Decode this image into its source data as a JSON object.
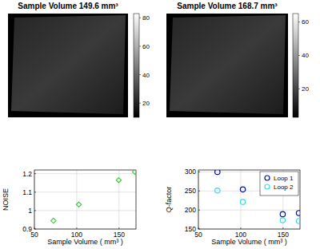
{
  "chart_data": [
    {
      "type": "image",
      "title": "Sample Volume 149.6 mm³",
      "color_range": [
        10,
        83
      ],
      "color_ticks": [
        20,
        40,
        60,
        80
      ]
    },
    {
      "type": "image",
      "title": "Sample Volume 168.7 mm³",
      "color_range": [
        3,
        65
      ],
      "color_ticks": [
        20,
        40,
        60
      ]
    },
    {
      "type": "scatter",
      "x_label": "Sample Volume ( mm³ )",
      "y_label": "NOISE",
      "x": [
        72.5,
        102.5,
        149.6,
        168.7
      ],
      "values": [
        0.945,
        1.033,
        1.165,
        1.21
      ],
      "color": "#33cc33",
      "marker": "diamond",
      "xlim": [
        50,
        170
      ],
      "xticks": [
        50,
        100,
        150
      ],
      "ylim": [
        0.9,
        1.22
      ],
      "yticks": [
        0.9,
        1,
        1.1,
        1.2
      ],
      "grid": true
    },
    {
      "type": "scatter",
      "x_label": "Sample Volume ( mm³ )",
      "y_label": "Q-factor",
      "x": [
        72.5,
        102.5,
        149.6,
        168.7
      ],
      "series": [
        {
          "name": "Loop 1",
          "color": "#0c0c9c",
          "marker": "circle",
          "values": [
            300,
            254,
            189,
            192
          ]
        },
        {
          "name": "Loop 2",
          "color": "#40d8e8",
          "marker": "circle",
          "values": [
            251,
            221,
            173,
            171
          ]
        }
      ],
      "xlim": [
        50,
        170
      ],
      "xticks": [
        50,
        100,
        150
      ],
      "ylim": [
        150,
        305
      ],
      "yticks": [
        150,
        200,
        250,
        300
      ],
      "grid": true,
      "legend": "northeast"
    }
  ]
}
